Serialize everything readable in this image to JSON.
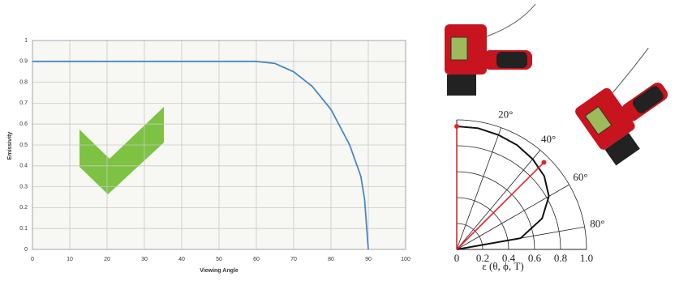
{
  "chart_data": [
    {
      "type": "line",
      "xlabel": "Viewing Angle",
      "ylabel": "Emissivity",
      "series": [
        {
          "color": "#4a86c5",
          "x": [
            0,
            60,
            65,
            70,
            75,
            80,
            85,
            88,
            89,
            90
          ],
          "values": [
            0.9,
            0.9,
            0.89,
            0.85,
            0.78,
            0.67,
            0.5,
            0.35,
            0.24,
            0
          ]
        }
      ],
      "xlim": [
        0,
        100
      ],
      "xticks": [
        0,
        10,
        20,
        30,
        40,
        50,
        60,
        70,
        80,
        90,
        100
      ],
      "ylim": [
        0,
        1
      ],
      "yticks": [
        0,
        0.1,
        0.2,
        0.3,
        0.4,
        0.5,
        0.6,
        0.7,
        0.8,
        0.9,
        1
      ],
      "grid": true
    },
    {
      "type": "polar",
      "xlabel": "ε (θ, ϕ, T)",
      "series": [
        {
          "color": "#111111",
          "x": [
            0,
            10,
            20,
            30,
            40,
            50,
            60,
            70,
            80,
            90
          ],
          "values": [
            0.95,
            0.95,
            0.94,
            0.93,
            0.91,
            0.88,
            0.82,
            0.7,
            0.5,
            0
          ]
        }
      ],
      "angle_ticks": [
        {
          "value": 20,
          "label": "20°"
        },
        {
          "value": 40,
          "label": "40°"
        },
        {
          "value": 60,
          "label": "60°"
        },
        {
          "value": 80,
          "label": "80°"
        }
      ],
      "rlim": [
        0,
        1
      ],
      "rticks": [
        0,
        0.2,
        0.4,
        0.6,
        0.8,
        {
          "value": 1,
          "label": "1.0"
        }
      ],
      "grid": true
    }
  ]
}
